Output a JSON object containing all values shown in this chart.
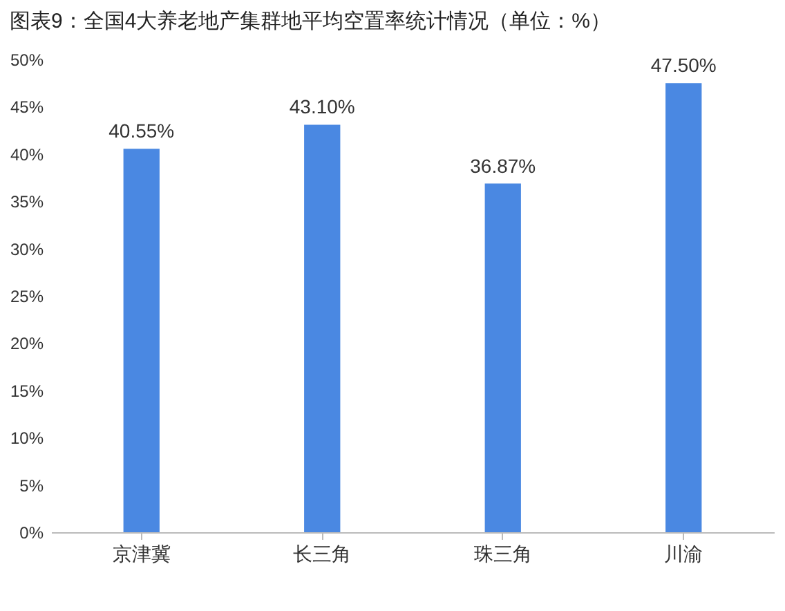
{
  "chart_data": {
    "type": "bar",
    "title": "图表9：全国4大养老地产集群地平均空置率统计情况（单位：%）",
    "categories": [
      "京津冀",
      "长三角",
      "珠三角",
      "川渝"
    ],
    "values": [
      40.55,
      43.1,
      36.87,
      47.5
    ],
    "value_labels": [
      "40.55%",
      "43.10%",
      "36.87%",
      "47.50%"
    ],
    "color": "#4a88e2",
    "ylim": [
      0,
      50
    ],
    "yticks": [
      {
        "value": 0,
        "label": "0%"
      },
      {
        "value": 5,
        "label": "5%"
      },
      {
        "value": 10,
        "label": "10%"
      },
      {
        "value": 15,
        "label": "15%"
      },
      {
        "value": 20,
        "label": "20%"
      },
      {
        "value": 25,
        "label": "25%"
      },
      {
        "value": 30,
        "label": "30%"
      },
      {
        "value": 35,
        "label": "35%"
      },
      {
        "value": 40,
        "label": "40%"
      },
      {
        "value": 45,
        "label": "45%"
      },
      {
        "value": 50,
        "label": "50%"
      }
    ],
    "grid": false
  }
}
